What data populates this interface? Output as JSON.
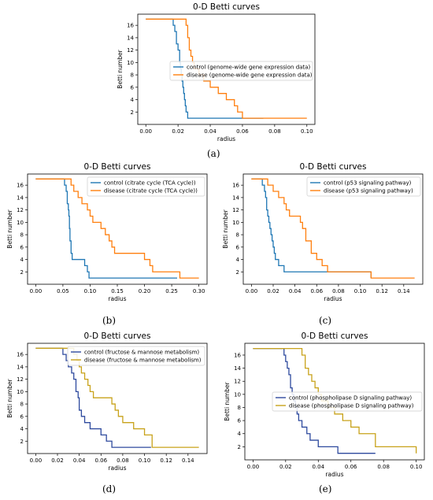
{
  "colors": {
    "control_orange_set": "#1f77b4",
    "disease_orange_set": "#ff7f0e",
    "control_olive_set": "#2e4a9e",
    "disease_olive_set": "#c8a21a"
  },
  "chart_data": [
    {
      "id": "a",
      "panel_label": "(a)",
      "type": "line",
      "step": true,
      "title": "0-D Betti curves",
      "xlabel": "radius",
      "ylabel": "Betti number",
      "xlim": [
        -0.005,
        0.105
      ],
      "ylim": [
        0,
        17.8
      ],
      "xticks": [
        0.0,
        0.02,
        0.04,
        0.06,
        0.08,
        0.1
      ],
      "xtick_labels": [
        "0.00",
        "0.02",
        "0.04",
        "0.06",
        "0.08",
        "0.10"
      ],
      "yticks": [
        2,
        4,
        6,
        8,
        10,
        12,
        14,
        16
      ],
      "grid": false,
      "legend_position": "center-right",
      "series": [
        {
          "name": "control (genome-wide gene expression data)",
          "color": "#1f77b4",
          "x": [
            0.0,
            0.017,
            0.018,
            0.019,
            0.02,
            0.021,
            0.0215,
            0.022,
            0.0225,
            0.023,
            0.0235,
            0.024,
            0.0245,
            0.025,
            0.026,
            0.073
          ],
          "y": [
            17,
            16,
            15,
            13,
            12,
            10,
            9,
            8,
            7,
            6,
            5,
            4,
            3,
            2,
            1,
            1
          ]
        },
        {
          "name": "disease (genome-wide gene expression data)",
          "color": "#ff7f0e",
          "x": [
            0.0,
            0.025,
            0.026,
            0.027,
            0.028,
            0.029,
            0.03,
            0.033,
            0.036,
            0.04,
            0.045,
            0.05,
            0.055,
            0.057,
            0.06,
            0.1
          ],
          "y": [
            17,
            16,
            14,
            12,
            11,
            10,
            9,
            8,
            7,
            6,
            5,
            4,
            3,
            2,
            1,
            1
          ]
        }
      ]
    },
    {
      "id": "b",
      "panel_label": "(b)",
      "type": "line",
      "step": true,
      "title": "0-D Betti curves",
      "xlabel": "radius",
      "ylabel": "Betti number",
      "xlim": [
        -0.015,
        0.315
      ],
      "ylim": [
        0,
        17.8
      ],
      "xticks": [
        0.0,
        0.05,
        0.1,
        0.15,
        0.2,
        0.25,
        0.3
      ],
      "xtick_labels": [
        "0.00",
        "0.05",
        "0.10",
        "0.15",
        "0.20",
        "0.25",
        "0.30"
      ],
      "yticks": [
        2,
        4,
        6,
        8,
        10,
        12,
        14,
        16
      ],
      "grid": false,
      "legend_position": "top-right",
      "series": [
        {
          "name": "control (citrate cycle (TCA cycle))",
          "color": "#1f77b4",
          "x": [
            0.0,
            0.053,
            0.056,
            0.058,
            0.06,
            0.061,
            0.062,
            0.063,
            0.065,
            0.067,
            0.085,
            0.09,
            0.095,
            0.098,
            0.26
          ],
          "y": [
            17,
            16,
            15,
            13,
            12,
            11,
            9,
            7,
            5,
            4,
            4,
            3,
            2,
            1,
            1
          ]
        },
        {
          "name": "disease (citrate cycle (TCA cycle))",
          "color": "#ff7f0e",
          "x": [
            0.0,
            0.065,
            0.07,
            0.078,
            0.085,
            0.095,
            0.1,
            0.105,
            0.11,
            0.12,
            0.128,
            0.135,
            0.14,
            0.145,
            0.15,
            0.2,
            0.21,
            0.215,
            0.265,
            0.3
          ],
          "y": [
            17,
            16,
            15,
            14,
            13,
            12,
            11,
            10,
            10,
            9,
            8,
            7,
            6,
            5,
            5,
            4,
            3,
            2,
            1,
            1
          ]
        }
      ]
    },
    {
      "id": "c",
      "panel_label": "(c)",
      "type": "line",
      "step": true,
      "title": "0-D Betti curves",
      "xlabel": "radius",
      "ylabel": "Betti number",
      "xlim": [
        -0.0075,
        0.1575
      ],
      "ylim": [
        0,
        17.8
      ],
      "xticks": [
        0.0,
        0.02,
        0.04,
        0.06,
        0.08,
        0.1,
        0.12,
        0.14
      ],
      "xtick_labels": [
        "0.00",
        "0.02",
        "0.04",
        "0.06",
        "0.08",
        "0.10",
        "0.12",
        "0.14"
      ],
      "yticks": [
        2,
        4,
        6,
        8,
        10,
        12,
        14,
        16
      ],
      "grid": false,
      "legend_position": "top-right",
      "series": [
        {
          "name": "control (p53 signaling pathway)",
          "color": "#1f77b4",
          "x": [
            0.0,
            0.01,
            0.012,
            0.013,
            0.014,
            0.015,
            0.016,
            0.017,
            0.018,
            0.019,
            0.02,
            0.021,
            0.022,
            0.025,
            0.03,
            0.11
          ],
          "y": [
            17,
            16,
            15,
            14,
            12,
            11,
            10,
            9,
            8,
            7,
            6,
            5,
            4,
            3,
            2,
            1
          ]
        },
        {
          "name": "disease (p53 signaling pathway)",
          "color": "#ff7f0e",
          "x": [
            0.0,
            0.015,
            0.02,
            0.025,
            0.03,
            0.032,
            0.035,
            0.04,
            0.045,
            0.047,
            0.05,
            0.055,
            0.06,
            0.065,
            0.07,
            0.11,
            0.15
          ],
          "y": [
            17,
            16,
            15,
            14,
            13,
            12,
            11,
            11,
            10,
            9,
            7,
            5,
            4,
            3,
            2,
            1,
            1
          ]
        }
      ]
    },
    {
      "id": "d",
      "panel_label": "(d)",
      "type": "line",
      "step": true,
      "title": "0-D Betti curves",
      "xlabel": "radius",
      "ylabel": "Betti number",
      "xlim": [
        -0.0075,
        0.1575
      ],
      "ylim": [
        0,
        17.8
      ],
      "xticks": [
        0.0,
        0.02,
        0.04,
        0.06,
        0.08,
        0.1,
        0.12,
        0.14
      ],
      "xtick_labels": [
        "0.00",
        "0.02",
        "0.04",
        "0.06",
        "0.08",
        "0.10",
        "0.12",
        "0.14"
      ],
      "yticks": [
        2,
        4,
        6,
        8,
        10,
        12,
        14,
        16
      ],
      "grid": false,
      "legend_position": "top-center",
      "series": [
        {
          "name": "control (fructose & mannose metabolism)",
          "color": "#2e4a9e",
          "x": [
            0.0,
            0.025,
            0.028,
            0.03,
            0.033,
            0.035,
            0.037,
            0.039,
            0.04,
            0.042,
            0.045,
            0.05,
            0.06,
            0.065,
            0.07,
            0.106
          ],
          "y": [
            17,
            16,
            15,
            14,
            13,
            12,
            10,
            9,
            7,
            6,
            5,
            4,
            3,
            2,
            1,
            1
          ]
        },
        {
          "name": "disease (fructose & mannose metabolism)",
          "color": "#c8a21a",
          "x": [
            0.0,
            0.035,
            0.038,
            0.04,
            0.042,
            0.045,
            0.048,
            0.05,
            0.053,
            0.07,
            0.073,
            0.076,
            0.08,
            0.09,
            0.1,
            0.107,
            0.15
          ],
          "y": [
            17,
            16,
            15,
            14,
            13,
            12,
            11,
            10,
            9,
            8,
            7,
            6,
            5,
            4,
            3,
            1,
            1
          ]
        }
      ]
    },
    {
      "id": "e",
      "panel_label": "(e)",
      "type": "line",
      "step": true,
      "title": "0-D Betti curves",
      "xlabel": "radius",
      "ylabel": "Betti number",
      "xlim": [
        -0.005,
        0.105
      ],
      "ylim": [
        0,
        17.8
      ],
      "xticks": [
        0.0,
        0.02,
        0.04,
        0.06,
        0.08,
        0.1
      ],
      "xtick_labels": [
        "0.00",
        "0.02",
        "0.04",
        "0.06",
        "0.08",
        "0.10"
      ],
      "yticks": [
        2,
        4,
        6,
        8,
        10,
        12,
        14,
        16
      ],
      "grid": false,
      "legend_position": "center-right",
      "series": [
        {
          "name": "control (phospholipase D signaling pathway)",
          "color": "#2e4a9e",
          "x": [
            0.0,
            0.019,
            0.02,
            0.021,
            0.022,
            0.023,
            0.024,
            0.025,
            0.026,
            0.027,
            0.028,
            0.03,
            0.033,
            0.035,
            0.04,
            0.052,
            0.075
          ],
          "y": [
            17,
            16,
            15,
            14,
            13,
            11,
            10,
            9,
            8,
            7,
            6,
            5,
            4,
            3,
            2,
            1,
            1
          ]
        },
        {
          "name": "disease (phospholipase D signaling pathway)",
          "color": "#c8a21a",
          "x": [
            0.0,
            0.03,
            0.032,
            0.034,
            0.036,
            0.038,
            0.04,
            0.042,
            0.046,
            0.05,
            0.055,
            0.06,
            0.065,
            0.075,
            0.1
          ],
          "y": [
            17,
            16,
            14,
            13,
            12,
            11,
            10,
            9,
            8,
            7,
            6,
            5,
            4,
            2,
            1
          ]
        }
      ]
    }
  ]
}
